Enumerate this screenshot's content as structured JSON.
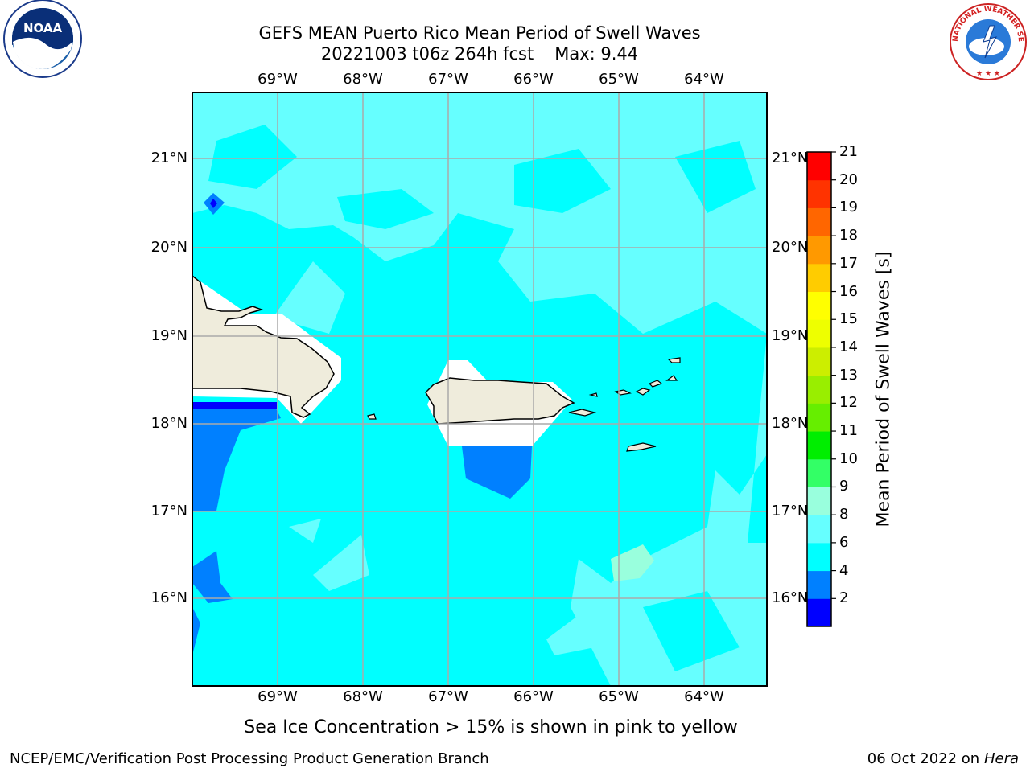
{
  "title_line1": "GEFS MEAN Puerto Rico Mean Period of Swell Waves",
  "title_date": "20221003 t06z 264h fcst",
  "title_max": "Max: 9.44",
  "logos": {
    "left": "noara-logo",
    "right": "national-weather-service-logo"
  },
  "nws_logo_text": "NATIONAL WEATHER SERVICE",
  "lon_ticks": [
    "69°W",
    "68°W",
    "67°W",
    "66°W",
    "65°W",
    "64°W"
  ],
  "lat_ticks": [
    "21°N",
    "20°N",
    "19°N",
    "18°N",
    "17°N",
    "16°N"
  ],
  "colorbar": {
    "label": "Mean Period of Swell Waves [s]",
    "ticks": [
      "21",
      "20",
      "19",
      "18",
      "17",
      "16",
      "15",
      "14",
      "13",
      "12",
      "11",
      "10",
      "9",
      "8",
      "6",
      "4",
      "2"
    ],
    "colors": [
      "#0000ff",
      "#0080ff",
      "#00ffff",
      "#66ffff",
      "#99ffdd",
      "#33ff66",
      "#00ee00",
      "#66ee00",
      "#99ee00",
      "#ccee00",
      "#eeff00",
      "#ffff00",
      "#ffcc00",
      "#ff9900",
      "#ff6600",
      "#ff3300",
      "#ff0000"
    ]
  },
  "map_colors": {
    "ocean_main": "#00ffff",
    "ocean_light": "#66ffff",
    "ocean_dark": "#0080ff",
    "ocean_deep": "#0000ff",
    "land": "#efecdc"
  },
  "footnote": "Sea Ice Concentration > 15% is shown in pink to yellow",
  "footer_left": "NCEP/EMC/Verification Post Processing Product Generation Branch",
  "footer_date": "06 Oct 2022 on ",
  "footer_machine": "Hera"
}
